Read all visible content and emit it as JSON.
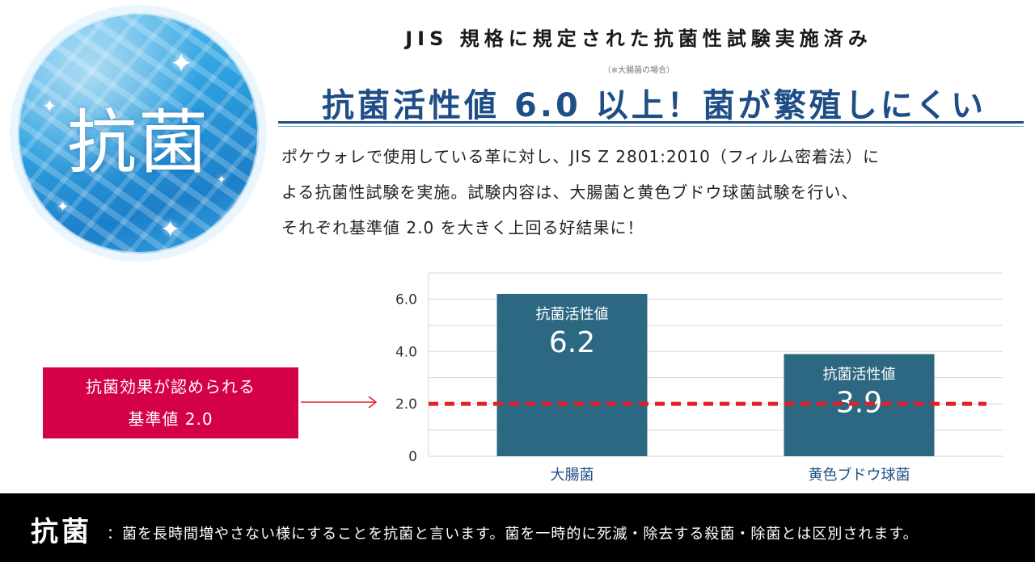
{
  "badge": {
    "label": "抗菌",
    "sparkle_icon": "sparkle-icon"
  },
  "header": {
    "subtitle": "JIS 規格に規定された抗菌性試験実施済み",
    "note": "（※大腸菌の場合）",
    "title": "抗菌活性値 6.0 以上！菌が繁殖しにくい"
  },
  "body": {
    "lines": [
      "ポケウォレで使用している革に対し、JIS Z 2801:2010（フィルム密着法）に",
      "よる抗菌性試験を実施。試験内容は、大腸菌と黄色ブドウ球菌試験を行い、",
      "それぞれ基準値 2.0 を大きく上回る好結果に！"
    ]
  },
  "callout": {
    "line1": "抗菌効果が認められる",
    "line2": "基準値 2.0"
  },
  "colors": {
    "bar": "#2d6882",
    "threshold": "#e0202a",
    "callout": "#d4004a",
    "title": "#1f4e86"
  },
  "chart_data": {
    "type": "bar",
    "categories": [
      "大腸菌",
      "黄色ブドウ球菌"
    ],
    "values": [
      6.2,
      3.9
    ],
    "value_labels": [
      "6.2",
      "3.9"
    ],
    "bar_label": "抗菌活性値",
    "yticks": [
      "0",
      "2.0",
      "4.0",
      "6.0"
    ],
    "ytick_values": [
      0,
      2,
      4,
      6
    ],
    "ylim": [
      0,
      7
    ],
    "threshold": 2.0,
    "title": "",
    "xlabel": "",
    "ylabel": ""
  },
  "footer": {
    "term": "抗菌",
    "definition": "：菌を長時間増やさない様にすることを抗菌と言います。菌を一時的に死滅・除去する殺菌・除菌とは区別されます。"
  }
}
